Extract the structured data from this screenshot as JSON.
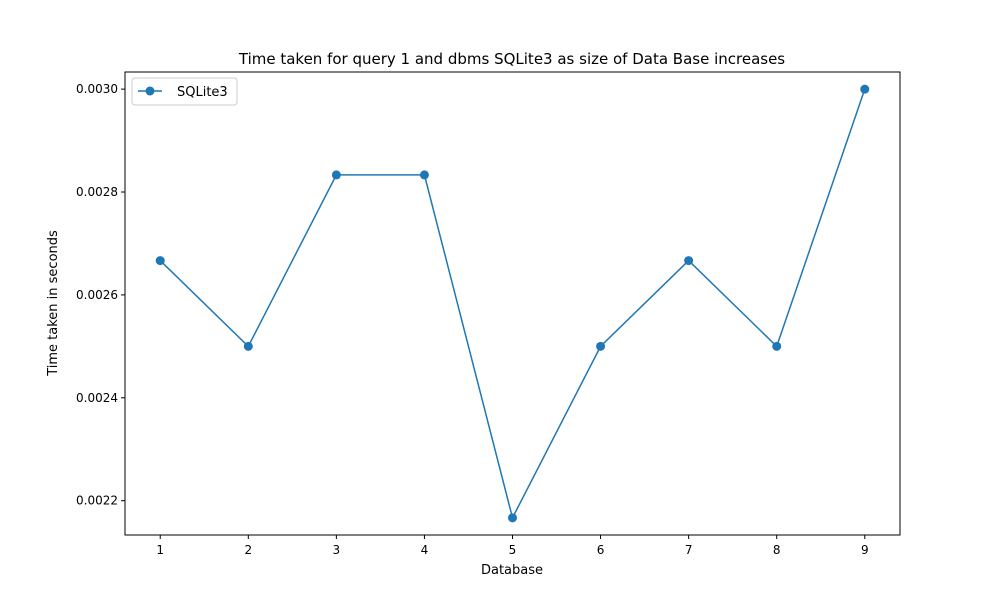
{
  "chart_data": {
    "type": "line",
    "title": "Time taken for query 1 and dbms SQLite3 as size of Data Base increases",
    "xlabel": "Database",
    "ylabel": "Time taken in seconds",
    "x": [
      1,
      2,
      3,
      4,
      5,
      6,
      7,
      8,
      9
    ],
    "series": [
      {
        "name": "SQLite3",
        "values": [
          0.0026667,
          0.0025,
          0.0028333,
          0.0028333,
          0.0021667,
          0.0025,
          0.0026667,
          0.0025,
          0.003
        ]
      }
    ],
    "xlim": [
      0.6,
      9.4
    ],
    "ylim": [
      0.0021333,
      0.0030333
    ],
    "xticks": [
      1,
      2,
      3,
      4,
      5,
      6,
      7,
      8,
      9
    ],
    "xtick_labels": [
      "1",
      "2",
      "3",
      "4",
      "5",
      "6",
      "7",
      "8",
      "9"
    ],
    "yticks": [
      0.0022,
      0.0024,
      0.0026,
      0.0028,
      0.003
    ],
    "ytick_labels": [
      "0.0022",
      "0.0024",
      "0.0026",
      "0.0028",
      "0.0030"
    ],
    "grid": false,
    "legend_position": "top-left",
    "colors": {
      "series": "#1f77b4",
      "axes": "#000000"
    }
  }
}
